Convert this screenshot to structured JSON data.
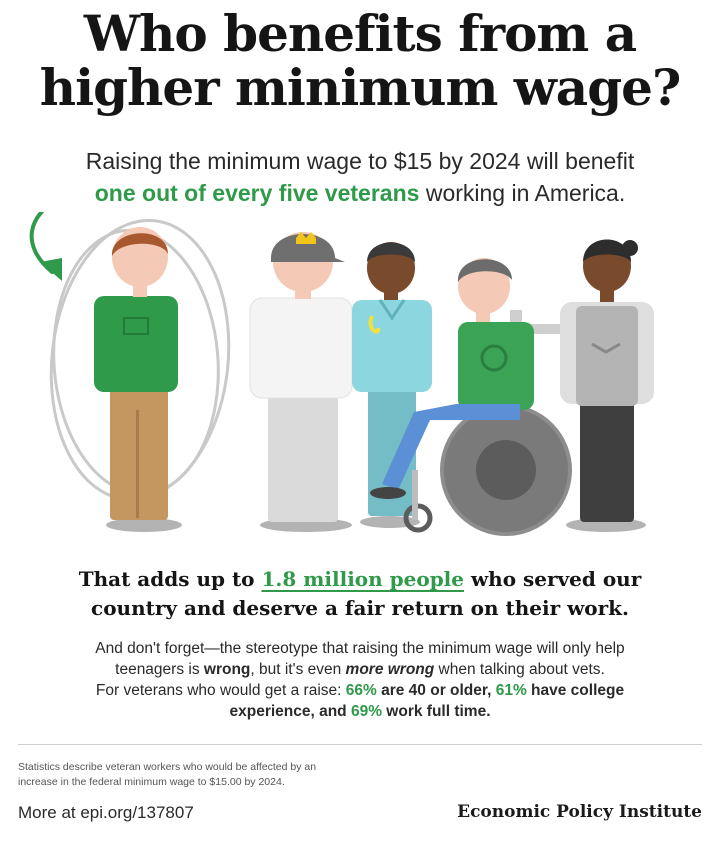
{
  "title": {
    "line1": "Who benefits from a",
    "line2": "higher minimum wage?"
  },
  "subtitle": {
    "line1": "Raising the minimum wage to $15 by 2024 will benefit",
    "line2_highlight": "one out of every five veterans",
    "line2_rest": " working in America."
  },
  "lead": {
    "line1_before": "That adds up to ",
    "line1_highlight": "1.8 million people",
    "line1_after": " who served our",
    "line2": "country and deserve a fair return on their work."
  },
  "body": {
    "line1": "And don't forget—the stereotype that raising the minimum wage will only help",
    "line2_a": "teenagers is ",
    "line2_bold": "wrong",
    "line2_b": ", but it's even ",
    "line2_em": "more wrong",
    "line2_c": " when talking about vets.",
    "line3_a": "For veterans who would get a raise: ",
    "line3_p1": "66%",
    "line3_b": " are 40 or older, ",
    "line3_p2": "61%",
    "line3_c": " have college",
    "line4_a": "experience, and ",
    "line4_p3": "69%",
    "line4_b": " work full time."
  },
  "footnote": {
    "line1": "Statistics describe veteran workers who would be affected by an",
    "line2": "increase in the federal minimum wage to $15.00 by 2024."
  },
  "more_link": "More at epi.org/137807",
  "organization": "Economic Policy Institute",
  "colors": {
    "accent_green": "#2f9a49",
    "title": "#151515"
  }
}
